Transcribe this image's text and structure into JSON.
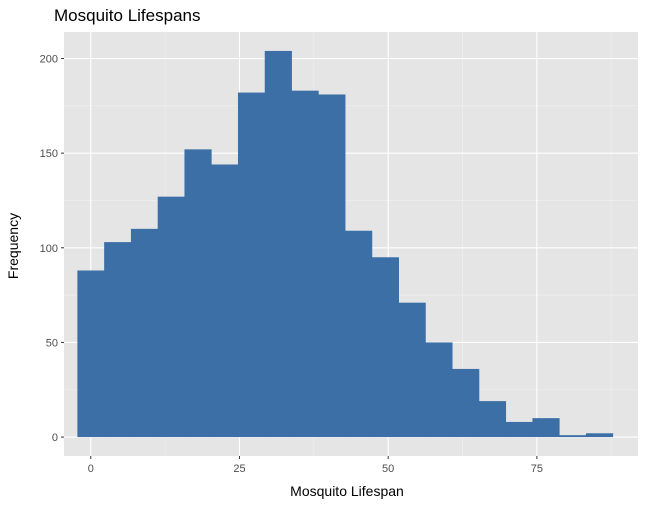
{
  "chart_data": {
    "type": "bar",
    "title": "Mosquito Lifespans",
    "xlabel": "Mosquito Lifespan",
    "ylabel": "Frequency",
    "xlim": [
      -4.5,
      92
    ],
    "ylim": [
      -10,
      214
    ],
    "x_ticks": [
      0,
      25,
      50,
      75
    ],
    "y_ticks": [
      0,
      50,
      100,
      150,
      200
    ],
    "bin_width": 4.5,
    "bins_start": -2.25,
    "values": [
      88,
      103,
      110,
      127,
      152,
      144,
      182,
      204,
      183,
      181,
      109,
      95,
      71,
      50,
      36,
      19,
      8,
      10,
      1,
      2
    ],
    "grid": true,
    "colors": {
      "bar": "#3b6fa6",
      "panel": "#e5e5e5",
      "grid_major": "#ffffff",
      "grid_minor": "#f0f0f0"
    }
  }
}
